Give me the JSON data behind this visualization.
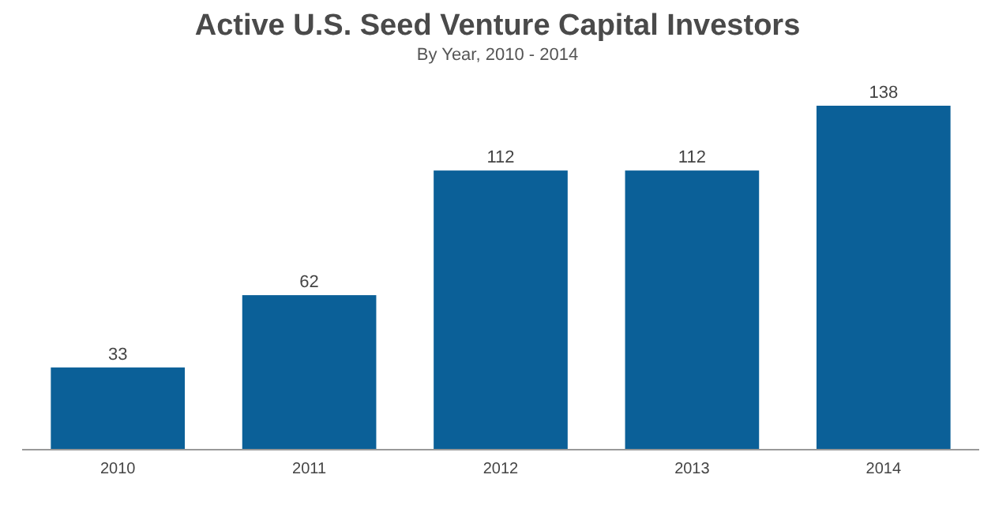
{
  "chart_data": {
    "type": "bar",
    "title": "Active U.S. Seed Venture Capital Investors",
    "subtitle": "By Year, 2010 - 2014",
    "categories": [
      "2010",
      "2011",
      "2012",
      "2013",
      "2014"
    ],
    "values": [
      33,
      62,
      112,
      112,
      138
    ],
    "color": "#0b6098",
    "data_labels": true
  }
}
